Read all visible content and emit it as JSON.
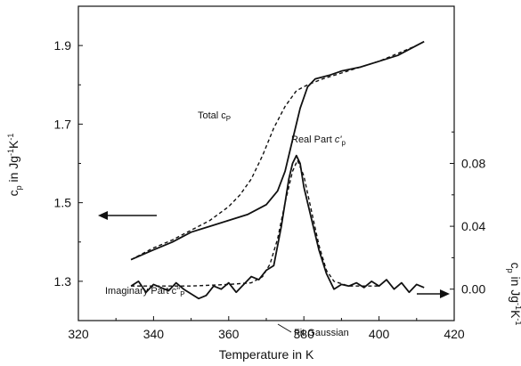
{
  "chart_data": {
    "type": "line",
    "xlabel": "Temperature in K",
    "x_ticks": [
      "320",
      "340",
      "360",
      "380",
      "400",
      "420"
    ],
    "xlim": [
      320,
      420
    ],
    "y_left": {
      "label_main": "c",
      "label_sub": "p",
      "label_rest": " in Jg",
      "label_sup1": "-1",
      "label_k": "K",
      "label_sup2": "-1",
      "ticks": [
        "1.3",
        "1.5",
        "1.7",
        "1.9"
      ],
      "ylim": [
        1.2,
        2.0
      ]
    },
    "y_right": {
      "label_main": "c",
      "label_sub": "p",
      "label_rest": " in Jg",
      "label_sup1": "-1",
      "label_k": "K",
      "label_sup2": "-1",
      "ticks": [
        "0.00",
        "0.04",
        "0.08"
      ],
      "ylim": [
        -0.02,
        0.18
      ]
    },
    "series": [
      {
        "name": "Total c_p",
        "axis": "left",
        "style": "dashed",
        "points": [
          [
            334,
            1.355
          ],
          [
            340,
            1.385
          ],
          [
            345,
            1.405
          ],
          [
            350,
            1.43
          ],
          [
            355,
            1.455
          ],
          [
            360,
            1.49
          ],
          [
            363,
            1.52
          ],
          [
            366,
            1.56
          ],
          [
            369,
            1.62
          ],
          [
            372,
            1.69
          ],
          [
            375,
            1.745
          ],
          [
            378,
            1.785
          ],
          [
            381,
            1.8
          ],
          [
            385,
            1.815
          ],
          [
            390,
            1.83
          ],
          [
            395,
            1.845
          ],
          [
            400,
            1.86
          ],
          [
            405,
            1.88
          ],
          [
            410,
            1.9
          ]
        ]
      },
      {
        "name": "Real Part c'_p",
        "axis": "left",
        "style": "solid",
        "points": [
          [
            334,
            1.355
          ],
          [
            340,
            1.38
          ],
          [
            345,
            1.4
          ],
          [
            350,
            1.425
          ],
          [
            355,
            1.44
          ],
          [
            360,
            1.455
          ],
          [
            365,
            1.47
          ],
          [
            370,
            1.495
          ],
          [
            373,
            1.53
          ],
          [
            375,
            1.58
          ],
          [
            377,
            1.66
          ],
          [
            379,
            1.74
          ],
          [
            381,
            1.795
          ],
          [
            383,
            1.815
          ],
          [
            387,
            1.825
          ],
          [
            390,
            1.835
          ],
          [
            395,
            1.845
          ],
          [
            400,
            1.86
          ],
          [
            405,
            1.875
          ],
          [
            410,
            1.9
          ],
          [
            412,
            1.91
          ]
        ]
      },
      {
        "name": "Imaginary Part c''_p",
        "axis": "right",
        "style": "solid",
        "points": [
          [
            334,
            0.002
          ],
          [
            336,
            0.005
          ],
          [
            338,
            -0.002
          ],
          [
            340,
            0.003
          ],
          [
            342,
            0.001
          ],
          [
            344,
            -0.001
          ],
          [
            346,
            0.004
          ],
          [
            348,
            0.0
          ],
          [
            350,
            -0.003
          ],
          [
            352,
            -0.006
          ],
          [
            354,
            -0.004
          ],
          [
            356,
            0.002
          ],
          [
            358,
            0.0
          ],
          [
            360,
            0.004
          ],
          [
            362,
            -0.002
          ],
          [
            364,
            0.003
          ],
          [
            366,
            0.008
          ],
          [
            368,
            0.006
          ],
          [
            370,
            0.012
          ],
          [
            372,
            0.015
          ],
          [
            374,
            0.04
          ],
          [
            376,
            0.07
          ],
          [
            377,
            0.08
          ],
          [
            378,
            0.085
          ],
          [
            379,
            0.08
          ],
          [
            380,
            0.065
          ],
          [
            382,
            0.045
          ],
          [
            384,
            0.025
          ],
          [
            386,
            0.01
          ],
          [
            388,
            0.0
          ],
          [
            390,
            0.003
          ],
          [
            392,
            0.002
          ],
          [
            394,
            0.004
          ],
          [
            396,
            0.001
          ],
          [
            398,
            0.005
          ],
          [
            400,
            0.002
          ],
          [
            402,
            0.006
          ],
          [
            404,
            0.0
          ],
          [
            406,
            0.004
          ],
          [
            408,
            -0.002
          ],
          [
            410,
            0.003
          ],
          [
            412,
            0.001
          ]
        ]
      },
      {
        "name": "Fit Gaussian",
        "axis": "right",
        "style": "dashed",
        "points": [
          [
            334,
            0.002
          ],
          [
            350,
            0.002
          ],
          [
            360,
            0.003
          ],
          [
            366,
            0.004
          ],
          [
            369,
            0.008
          ],
          [
            371,
            0.016
          ],
          [
            373,
            0.032
          ],
          [
            375,
            0.055
          ],
          [
            377,
            0.075
          ],
          [
            378.3,
            0.082
          ],
          [
            380,
            0.072
          ],
          [
            382,
            0.05
          ],
          [
            384,
            0.028
          ],
          [
            386,
            0.012
          ],
          [
            388,
            0.005
          ],
          [
            392,
            0.002
          ],
          [
            400,
            0.002
          ]
        ]
      }
    ],
    "annotations": {
      "total": {
        "main": "Total c",
        "sub": "P"
      },
      "real": {
        "main": "Real Part ",
        "italic": "c'",
        "sub": "p"
      },
      "imag": {
        "main": "Imaginary Part c''",
        "sub": "P"
      },
      "fit": "Fit Gaussian"
    }
  }
}
